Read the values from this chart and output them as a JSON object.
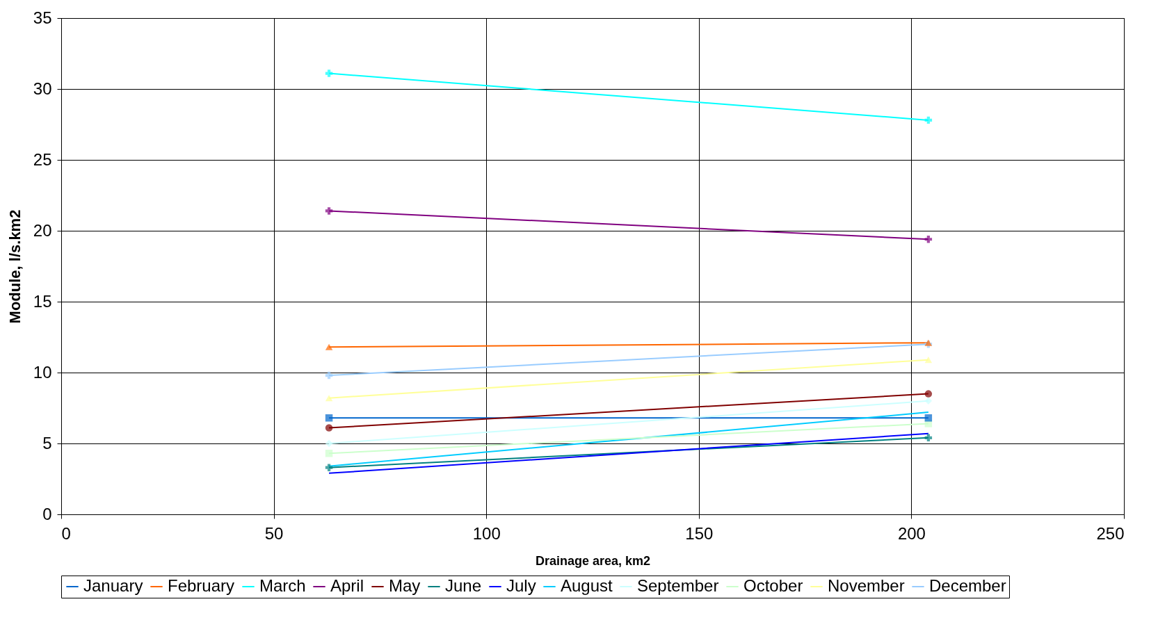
{
  "chart_data": {
    "type": "line",
    "xlabel": "Drainage area, km2",
    "ylabel": "Module, l/s.km2",
    "x": [
      63,
      204
    ],
    "series": [
      {
        "name": "January",
        "color": "#0066cc",
        "marker": "square",
        "values": [
          6.8,
          6.8
        ]
      },
      {
        "name": "February",
        "color": "#ff6600",
        "marker": "triangle",
        "values": [
          11.8,
          12.1
        ]
      },
      {
        "name": "March",
        "color": "#00ffff",
        "marker": "cross",
        "values": [
          31.1,
          27.8
        ]
      },
      {
        "name": "April",
        "color": "#800080",
        "marker": "cross",
        "values": [
          21.4,
          19.4
        ]
      },
      {
        "name": "May",
        "color": "#800000",
        "marker": "circle",
        "values": [
          6.1,
          8.5
        ]
      },
      {
        "name": "June",
        "color": "#008080",
        "marker": "cross",
        "values": [
          3.3,
          5.4
        ]
      },
      {
        "name": "July",
        "color": "#0000ff",
        "marker": "none",
        "values": [
          2.9,
          5.7
        ]
      },
      {
        "name": "August",
        "color": "#00ccff",
        "marker": "none",
        "values": [
          3.4,
          7.2
        ]
      },
      {
        "name": "September",
        "color": "#ccffff",
        "marker": "diamond",
        "values": [
          5.0,
          8.0
        ]
      },
      {
        "name": "October",
        "color": "#ccffcc",
        "marker": "square",
        "values": [
          4.3,
          6.4
        ]
      },
      {
        "name": "November",
        "color": "#ffff99",
        "marker": "triangle",
        "values": [
          8.2,
          10.9
        ]
      },
      {
        "name": "December",
        "color": "#99ccff",
        "marker": "cross",
        "values": [
          9.8,
          12.0
        ]
      }
    ],
    "xlim": [
      0,
      250
    ],
    "xticks": [
      0,
      50,
      100,
      150,
      200,
      250
    ],
    "ylim": [
      0,
      35
    ],
    "yticks": [
      0,
      5,
      10,
      15,
      20,
      25,
      30,
      35
    ],
    "grid": true,
    "legend": "bottom"
  }
}
